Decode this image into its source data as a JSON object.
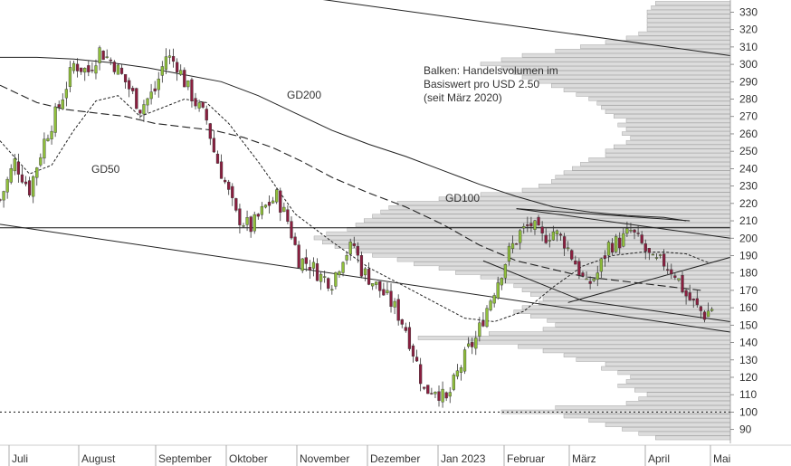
{
  "chart_data": {
    "type": "candlestick",
    "title": "",
    "xlabel": "",
    "ylabel": "",
    "ylim": [
      82,
      337
    ],
    "y_axis_position": "right",
    "y_ticks": [
      90,
      100,
      110,
      120,
      130,
      140,
      150,
      160,
      170,
      180,
      190,
      200,
      210,
      220,
      230,
      240,
      250,
      260,
      270,
      280,
      290,
      300,
      310,
      320,
      330
    ],
    "x_labels": [
      "Juli",
      "August",
      "September",
      "Oktober",
      "November",
      "Dezember",
      "Jan 2023",
      "Februar",
      "März",
      "April",
      "Mai"
    ],
    "annotations": {
      "volume_note": [
        "Balken: Handelsvolumen im",
        "Basiswert pro USD 2.50",
        "(seit März 2020)"
      ],
      "gd200": "GD200",
      "gd100": "GD100",
      "gd50": "GD50"
    },
    "colors": {
      "up_candle": "#8fbf3a",
      "down_candle": "#8b1e3f",
      "volume_bar": "#dcdcdc",
      "volume_edge": "#9a9a9a",
      "line": "#222222"
    },
    "horizontal_lines": [
      {
        "y": 206,
        "style": "solid"
      },
      {
        "y": 100,
        "style": "dotted"
      }
    ],
    "volume_profile": [
      {
        "price": 85,
        "volume": 0.18
      },
      {
        "price": 87.5,
        "volume": 0.22
      },
      {
        "price": 90,
        "volume": 0.26
      },
      {
        "price": 92.5,
        "volume": 0.3
      },
      {
        "price": 95,
        "volume": 0.34
      },
      {
        "price": 97.5,
        "volume": 0.4
      },
      {
        "price": 100,
        "volume": 0.55
      },
      {
        "price": 102.5,
        "volume": 0.42
      },
      {
        "price": 105,
        "volume": 0.25
      },
      {
        "price": 107.5,
        "volume": 0.22
      },
      {
        "price": 110,
        "volume": 0.2
      },
      {
        "price": 112.5,
        "volume": 0.23
      },
      {
        "price": 115,
        "volume": 0.27
      },
      {
        "price": 117.5,
        "volume": 0.25
      },
      {
        "price": 120,
        "volume": 0.24
      },
      {
        "price": 122.5,
        "volume": 0.27
      },
      {
        "price": 125,
        "volume": 0.31
      },
      {
        "price": 127.5,
        "volume": 0.3
      },
      {
        "price": 130,
        "volume": 0.37
      },
      {
        "price": 132.5,
        "volume": 0.4
      },
      {
        "price": 135,
        "volume": 0.45
      },
      {
        "price": 137.5,
        "volume": 0.51
      },
      {
        "price": 140,
        "volume": 0.63
      },
      {
        "price": 142.5,
        "volume": 0.75
      },
      {
        "price": 145,
        "volume": 0.58
      },
      {
        "price": 147.5,
        "volume": 0.45
      },
      {
        "price": 150,
        "volume": 0.42
      },
      {
        "price": 152.5,
        "volume": 0.44
      },
      {
        "price": 155,
        "volume": 0.48
      },
      {
        "price": 157.5,
        "volume": 0.52
      },
      {
        "price": 160,
        "volume": 0.5
      },
      {
        "price": 162.5,
        "volume": 0.46
      },
      {
        "price": 165,
        "volume": 0.45
      },
      {
        "price": 167.5,
        "volume": 0.48
      },
      {
        "price": 170,
        "volume": 0.5
      },
      {
        "price": 172.5,
        "volume": 0.52
      },
      {
        "price": 175,
        "volume": 0.56
      },
      {
        "price": 177.5,
        "volume": 0.6
      },
      {
        "price": 180,
        "volume": 0.66
      },
      {
        "price": 182.5,
        "volume": 0.7
      },
      {
        "price": 185,
        "volume": 0.76
      },
      {
        "price": 187.5,
        "volume": 0.8
      },
      {
        "price": 190,
        "volume": 0.86
      },
      {
        "price": 192.5,
        "volume": 0.9
      },
      {
        "price": 195,
        "volume": 0.95
      },
      {
        "price": 197.5,
        "volume": 0.98
      },
      {
        "price": 200,
        "volume": 1.0
      },
      {
        "price": 202.5,
        "volume": 0.97
      },
      {
        "price": 205,
        "volume": 0.92
      },
      {
        "price": 207.5,
        "volume": 0.9
      },
      {
        "price": 210,
        "volume": 0.88
      },
      {
        "price": 212.5,
        "volume": 0.86
      },
      {
        "price": 215,
        "volume": 0.84
      },
      {
        "price": 217.5,
        "volume": 0.82
      },
      {
        "price": 220,
        "volume": 0.8
      },
      {
        "price": 222.5,
        "volume": 0.7
      },
      {
        "price": 225,
        "volume": 0.6
      },
      {
        "price": 227.5,
        "volume": 0.5
      },
      {
        "price": 230,
        "volume": 0.46
      },
      {
        "price": 232.5,
        "volume": 0.43
      },
      {
        "price": 235,
        "volume": 0.42
      },
      {
        "price": 237.5,
        "volume": 0.4
      },
      {
        "price": 240,
        "volume": 0.38
      },
      {
        "price": 242.5,
        "volume": 0.36
      },
      {
        "price": 245,
        "volume": 0.34
      },
      {
        "price": 247.5,
        "volume": 0.3
      },
      {
        "price": 250,
        "volume": 0.3
      },
      {
        "price": 252.5,
        "volume": 0.28
      },
      {
        "price": 255,
        "volume": 0.25
      },
      {
        "price": 257.5,
        "volume": 0.24
      },
      {
        "price": 260,
        "volume": 0.26
      },
      {
        "price": 262.5,
        "volume": 0.25
      },
      {
        "price": 265,
        "volume": 0.27
      },
      {
        "price": 267.5,
        "volume": 0.25
      },
      {
        "price": 270,
        "volume": 0.28
      },
      {
        "price": 272.5,
        "volume": 0.3
      },
      {
        "price": 275,
        "volume": 0.31
      },
      {
        "price": 277.5,
        "volume": 0.32
      },
      {
        "price": 280,
        "volume": 0.34
      },
      {
        "price": 282.5,
        "volume": 0.37
      },
      {
        "price": 285,
        "volume": 0.4
      },
      {
        "price": 287.5,
        "volume": 0.43
      },
      {
        "price": 290,
        "volume": 0.46
      },
      {
        "price": 292.5,
        "volume": 0.5
      },
      {
        "price": 295,
        "volume": 0.52
      },
      {
        "price": 297.5,
        "volume": 0.55
      },
      {
        "price": 300,
        "volume": 0.6
      },
      {
        "price": 302.5,
        "volume": 0.55
      },
      {
        "price": 305,
        "volume": 0.5
      },
      {
        "price": 307.5,
        "volume": 0.42
      },
      {
        "price": 310,
        "volume": 0.36
      },
      {
        "price": 312.5,
        "volume": 0.3
      },
      {
        "price": 315,
        "volume": 0.25
      },
      {
        "price": 317.5,
        "volume": 0.22
      },
      {
        "price": 320,
        "volume": 0.2
      },
      {
        "price": 322.5,
        "volume": 0.2
      },
      {
        "price": 325,
        "volume": 0.2
      },
      {
        "price": 327.5,
        "volume": 0.2
      },
      {
        "price": 330,
        "volume": 0.2
      },
      {
        "price": 332.5,
        "volume": 0.19
      },
      {
        "price": 335,
        "volume": 0.18
      }
    ],
    "candle_anchors": [
      {
        "t": 0,
        "p": 222
      },
      {
        "t": 4,
        "p": 244
      },
      {
        "t": 8,
        "p": 228
      },
      {
        "t": 12,
        "p": 256
      },
      {
        "t": 16,
        "p": 276
      },
      {
        "t": 20,
        "p": 300
      },
      {
        "t": 24,
        "p": 296
      },
      {
        "t": 27,
        "p": 308
      },
      {
        "t": 31,
        "p": 300
      },
      {
        "t": 34,
        "p": 290
      },
      {
        "t": 38,
        "p": 275
      },
      {
        "t": 42,
        "p": 285
      },
      {
        "t": 45,
        "p": 305
      },
      {
        "t": 48,
        "p": 300
      },
      {
        "t": 50,
        "p": 290
      },
      {
        "t": 53,
        "p": 278
      },
      {
        "t": 56,
        "p": 268
      },
      {
        "t": 58,
        "p": 250
      },
      {
        "t": 61,
        "p": 232
      },
      {
        "t": 64,
        "p": 213
      },
      {
        "t": 68,
        "p": 206
      },
      {
        "t": 72,
        "p": 218
      },
      {
        "t": 75,
        "p": 224
      },
      {
        "t": 78,
        "p": 210
      },
      {
        "t": 81,
        "p": 188
      },
      {
        "t": 84,
        "p": 185
      },
      {
        "t": 87,
        "p": 178
      },
      {
        "t": 90,
        "p": 175
      },
      {
        "t": 93,
        "p": 190
      },
      {
        "t": 96,
        "p": 196
      },
      {
        "t": 98,
        "p": 182
      },
      {
        "t": 101,
        "p": 175
      },
      {
        "t": 104,
        "p": 168
      },
      {
        "t": 107,
        "p": 160
      },
      {
        "t": 110,
        "p": 148
      },
      {
        "t": 113,
        "p": 128
      },
      {
        "t": 115,
        "p": 112
      },
      {
        "t": 118,
        "p": 114
      },
      {
        "t": 121,
        "p": 106
      },
      {
        "t": 124,
        "p": 122
      },
      {
        "t": 127,
        "p": 136
      },
      {
        "t": 129,
        "p": 142
      },
      {
        "t": 132,
        "p": 160
      },
      {
        "t": 135,
        "p": 176
      },
      {
        "t": 138,
        "p": 192
      },
      {
        "t": 141,
        "p": 203
      },
      {
        "t": 144,
        "p": 208
      },
      {
        "t": 147,
        "p": 200
      },
      {
        "t": 150,
        "p": 204
      },
      {
        "t": 153,
        "p": 198
      },
      {
        "t": 156,
        "p": 186
      },
      {
        "t": 159,
        "p": 172
      },
      {
        "t": 162,
        "p": 180
      },
      {
        "t": 165,
        "p": 196
      },
      {
        "t": 168,
        "p": 198
      },
      {
        "t": 171,
        "p": 204
      },
      {
        "t": 174,
        "p": 196
      },
      {
        "t": 177,
        "p": 186
      },
      {
        "t": 180,
        "p": 186
      },
      {
        "t": 183,
        "p": 180
      },
      {
        "t": 186,
        "p": 167
      },
      {
        "t": 189,
        "p": 160
      },
      {
        "t": 191,
        "p": 156
      },
      {
        "t": 193,
        "p": 160
      }
    ],
    "gd50": [
      {
        "t": 0,
        "p": 256
      },
      {
        "t": 8,
        "p": 237
      },
      {
        "t": 14,
        "p": 242
      },
      {
        "t": 20,
        "p": 262
      },
      {
        "t": 26,
        "p": 279
      },
      {
        "t": 32,
        "p": 282
      },
      {
        "t": 38,
        "p": 270
      },
      {
        "t": 44,
        "p": 275
      },
      {
        "t": 50,
        "p": 280
      },
      {
        "t": 56,
        "p": 278
      },
      {
        "t": 62,
        "p": 266
      },
      {
        "t": 70,
        "p": 244
      },
      {
        "t": 80,
        "p": 214
      },
      {
        "t": 90,
        "p": 198
      },
      {
        "t": 100,
        "p": 183
      },
      {
        "t": 110,
        "p": 172
      },
      {
        "t": 118,
        "p": 163
      },
      {
        "t": 126,
        "p": 154
      },
      {
        "t": 134,
        "p": 152
      },
      {
        "t": 142,
        "p": 158
      },
      {
        "t": 150,
        "p": 172
      },
      {
        "t": 158,
        "p": 184
      },
      {
        "t": 166,
        "p": 190
      },
      {
        "t": 174,
        "p": 192
      },
      {
        "t": 180,
        "p": 192
      },
      {
        "t": 186,
        "p": 191
      },
      {
        "t": 192,
        "p": 186
      }
    ],
    "gd100": [
      {
        "t": 0,
        "p": 288
      },
      {
        "t": 10,
        "p": 278
      },
      {
        "t": 18,
        "p": 274
      },
      {
        "t": 26,
        "p": 272
      },
      {
        "t": 34,
        "p": 270
      },
      {
        "t": 42,
        "p": 266
      },
      {
        "t": 50,
        "p": 264
      },
      {
        "t": 58,
        "p": 262
      },
      {
        "t": 66,
        "p": 258
      },
      {
        "t": 74,
        "p": 252
      },
      {
        "t": 82,
        "p": 244
      },
      {
        "t": 90,
        "p": 235
      },
      {
        "t": 100,
        "p": 226
      },
      {
        "t": 110,
        "p": 218
      },
      {
        "t": 120,
        "p": 208
      },
      {
        "t": 130,
        "p": 196
      },
      {
        "t": 140,
        "p": 187
      },
      {
        "t": 150,
        "p": 182
      },
      {
        "t": 158,
        "p": 178
      },
      {
        "t": 166,
        "p": 176
      },
      {
        "t": 174,
        "p": 174
      },
      {
        "t": 182,
        "p": 172
      },
      {
        "t": 190,
        "p": 170
      }
    ],
    "gd200": [
      {
        "t": 0,
        "p": 304
      },
      {
        "t": 10,
        "p": 304
      },
      {
        "t": 20,
        "p": 303
      },
      {
        "t": 30,
        "p": 301
      },
      {
        "t": 40,
        "p": 298
      },
      {
        "t": 50,
        "p": 294
      },
      {
        "t": 60,
        "p": 290
      },
      {
        "t": 70,
        "p": 282
      },
      {
        "t": 80,
        "p": 272
      },
      {
        "t": 90,
        "p": 262
      },
      {
        "t": 100,
        "p": 254
      },
      {
        "t": 110,
        "p": 247
      },
      {
        "t": 120,
        "p": 239
      },
      {
        "t": 130,
        "p": 231
      },
      {
        "t": 140,
        "p": 224
      },
      {
        "t": 150,
        "p": 218
      },
      {
        "t": 160,
        "p": 215
      },
      {
        "t": 170,
        "p": 213
      },
      {
        "t": 180,
        "p": 212
      },
      {
        "t": 186,
        "p": 210
      }
    ],
    "trendlines": [
      {
        "from": {
          "t": 0,
          "p": 208
        },
        "to": {
          "t": 198,
          "p": 146
        }
      },
      {
        "from": {
          "t": 85,
          "p": 338
        },
        "to": {
          "t": 198,
          "p": 305
        }
      },
      {
        "from": {
          "t": 140,
          "p": 217
        },
        "to": {
          "t": 198,
          "p": 200
        }
      },
      {
        "from": {
          "t": 140,
          "p": 217
        },
        "to": {
          "t": 187,
          "p": 210
        }
      },
      {
        "from": {
          "t": 158,
          "p": 164
        },
        "to": {
          "t": 198,
          "p": 152
        }
      },
      {
        "from": {
          "t": 154,
          "p": 163
        },
        "to": {
          "t": 198,
          "p": 189
        }
      },
      {
        "from": {
          "t": 131,
          "p": 187
        },
        "to": {
          "t": 158,
          "p": 164
        }
      }
    ]
  }
}
